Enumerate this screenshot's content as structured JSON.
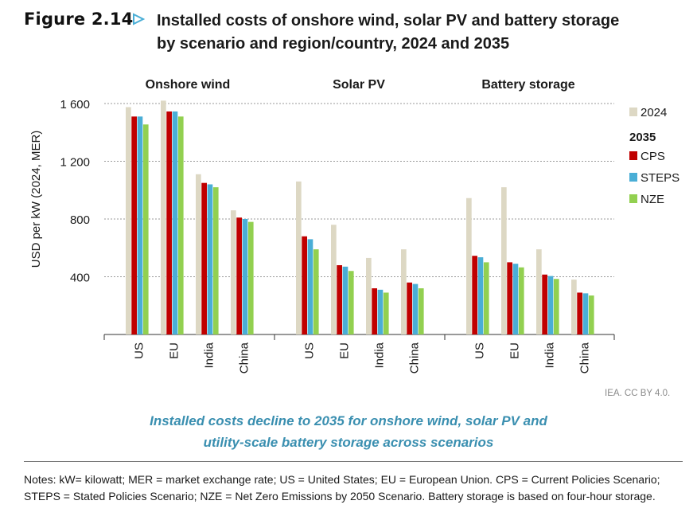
{
  "figure": {
    "label": "Figure 2.14",
    "title_line1": "Installed costs of onshore wind, solar PV and battery storage",
    "title_line2": "by scenario and region/country, 2024 and 2035",
    "source": "IEA. CC BY 4.0.",
    "takeaway_line1": "Installed costs decline to 2035 for onshore wind, solar PV and",
    "takeaway_line2": "utility-scale battery storage across scenarios",
    "notes": "Notes: kW= kilowatt; MER = market exchange rate; US = United States; EU = European Union. CPS = Current Policies Scenario; STEPS = Stated Policies Scenario; NZE = Net Zero Emissions by 2050 Scenario. Battery storage is based on four-hour storage."
  },
  "colors": {
    "y2024": "#ddd8c4",
    "cps": "#c00000",
    "steps": "#4aaed6",
    "nze": "#92d050",
    "grid": "#9a9a9a",
    "axis": "#333333"
  },
  "chart_data": {
    "type": "bar",
    "ylabel": "USD per kW (2024, MER)",
    "ylim": [
      0,
      1700
    ],
    "yticks": [
      400,
      800,
      1200,
      1600
    ],
    "ytick_labels": [
      "400",
      "800",
      "1 200",
      "1 600"
    ],
    "grid": true,
    "legend_position": "right",
    "legend": {
      "year_label": "2024",
      "group_label": "2035",
      "series_labels": [
        "CPS",
        "STEPS",
        "NZE"
      ]
    },
    "series_names": [
      "2024",
      "CPS",
      "STEPS",
      "NZE"
    ],
    "panels": [
      {
        "title": "Onshore wind",
        "categories": [
          "US",
          "EU",
          "India",
          "China"
        ],
        "values": [
          [
            1575,
            1510,
            1510,
            1455
          ],
          [
            1620,
            1545,
            1545,
            1510
          ],
          [
            1110,
            1050,
            1040,
            1020
          ],
          [
            860,
            810,
            800,
            780
          ]
        ]
      },
      {
        "title": "Solar PV",
        "categories": [
          "US",
          "EU",
          "India",
          "China"
        ],
        "values": [
          [
            1060,
            680,
            660,
            590
          ],
          [
            760,
            480,
            470,
            440
          ],
          [
            530,
            320,
            310,
            290
          ],
          [
            590,
            360,
            350,
            320
          ]
        ]
      },
      {
        "title": "Battery storage",
        "categories": [
          "US",
          "EU",
          "India",
          "China"
        ],
        "values": [
          [
            945,
            545,
            535,
            500
          ],
          [
            1020,
            500,
            490,
            465
          ],
          [
            590,
            415,
            405,
            385
          ],
          [
            380,
            290,
            285,
            270
          ]
        ]
      }
    ]
  }
}
